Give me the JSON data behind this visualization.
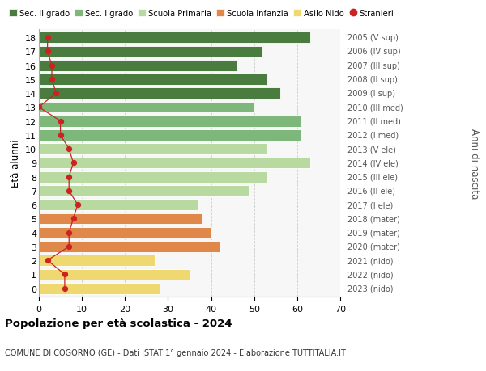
{
  "ages": [
    18,
    17,
    16,
    15,
    14,
    13,
    12,
    11,
    10,
    9,
    8,
    7,
    6,
    5,
    4,
    3,
    2,
    1,
    0
  ],
  "bar_values": [
    63,
    52,
    46,
    53,
    56,
    50,
    61,
    61,
    53,
    63,
    53,
    49,
    37,
    38,
    40,
    42,
    27,
    35,
    28
  ],
  "bar_colors": [
    "#4a7c40",
    "#4a7c40",
    "#4a7c40",
    "#4a7c40",
    "#4a7c40",
    "#7db87a",
    "#7db87a",
    "#7db87a",
    "#b8d9a0",
    "#b8d9a0",
    "#b8d9a0",
    "#b8d9a0",
    "#b8d9a0",
    "#e0884a",
    "#e0884a",
    "#e0884a",
    "#f0d870",
    "#f0d870",
    "#f0d870"
  ],
  "stranieri_values": [
    2,
    2,
    3,
    3,
    4,
    0,
    5,
    5,
    7,
    8,
    7,
    7,
    9,
    8,
    7,
    7,
    2,
    6,
    6
  ],
  "right_labels": [
    "2005 (V sup)",
    "2006 (IV sup)",
    "2007 (III sup)",
    "2008 (II sup)",
    "2009 (I sup)",
    "2010 (III med)",
    "2011 (II med)",
    "2012 (I med)",
    "2013 (V ele)",
    "2014 (IV ele)",
    "2015 (III ele)",
    "2016 (II ele)",
    "2017 (I ele)",
    "2018 (mater)",
    "2019 (mater)",
    "2020 (mater)",
    "2021 (nido)",
    "2022 (nido)",
    "2023 (nido)"
  ],
  "legend_labels": [
    "Sec. II grado",
    "Sec. I grado",
    "Scuola Primaria",
    "Scuola Infanzia",
    "Asilo Nido",
    "Stranieri"
  ],
  "legend_colors": [
    "#4a7c40",
    "#7db87a",
    "#b8d9a0",
    "#e0884a",
    "#f0d870",
    "#cc2222"
  ],
  "title": "Popolazione per età scolastica - 2024",
  "subtitle": "COMUNE DI COGORNO (GE) - Dati ISTAT 1° gennaio 2024 - Elaborazione TUTTITALIA.IT",
  "ylabel_left": "Età alunni",
  "ylabel_right": "Anni di nascita",
  "xlim": [
    0,
    70
  ],
  "xticks": [
    0,
    10,
    20,
    30,
    40,
    50,
    60,
    70
  ],
  "background_color": "#ffffff",
  "plot_bg_color": "#f7f7f7"
}
